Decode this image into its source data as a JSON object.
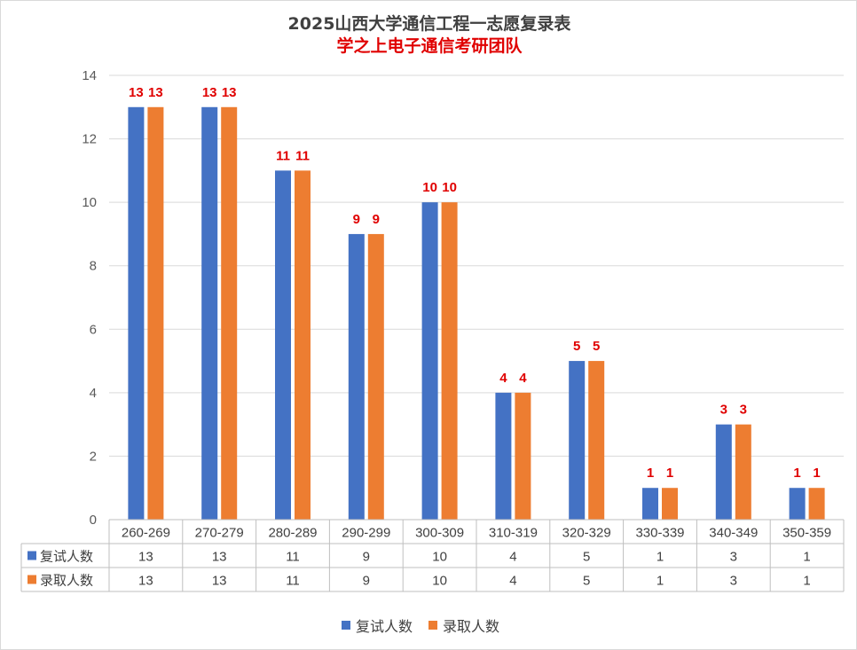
{
  "chart_data": {
    "type": "bar",
    "title": "2025山西大学通信工程一志愿复录表",
    "subtitle": "学之上电子通信考研团队",
    "categories": [
      "260-269",
      "270-279",
      "280-289",
      "290-299",
      "300-309",
      "310-319",
      "320-329",
      "330-339",
      "340-349",
      "350-359"
    ],
    "series": [
      {
        "name": "复试人数",
        "color": "#4472c4",
        "values": [
          13,
          13,
          11,
          9,
          10,
          4,
          5,
          1,
          3,
          1
        ]
      },
      {
        "name": "录取人数",
        "color": "#ed7d31",
        "values": [
          13,
          13,
          11,
          9,
          10,
          4,
          5,
          1,
          3,
          1
        ]
      }
    ],
    "ylim": [
      0,
      14
    ],
    "yticks": [
      0,
      2,
      4,
      6,
      8,
      10,
      12,
      14
    ],
    "grid": true,
    "data_labels": true,
    "data_label_color": "#e00000",
    "data_table": true,
    "legend_position": "bottom"
  }
}
